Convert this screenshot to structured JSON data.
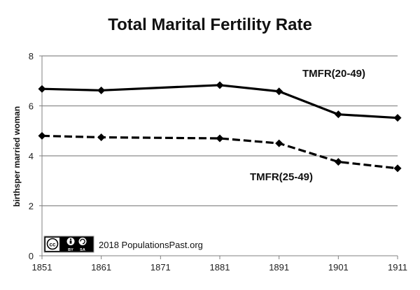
{
  "chart_data": {
    "type": "line",
    "title": "Total Marital Fertility Rate",
    "xlabel": "",
    "ylabel": "birthsper married woman",
    "xlim": [
      1851,
      1911
    ],
    "ylim": [
      0,
      8
    ],
    "x_ticks": [
      "1851",
      "1861",
      "1871",
      "1881",
      "1891",
      "1901",
      "1911"
    ],
    "y_ticks": [
      "0",
      "2",
      "4",
      "6",
      "8"
    ],
    "grid": "horizontal",
    "series": [
      {
        "name": "TMFR(20-49)",
        "style": "solid",
        "x": [
          1851,
          1861,
          1881,
          1891,
          1901,
          1911
        ],
        "values": [
          6.68,
          6.62,
          6.83,
          6.58,
          5.66,
          5.52
        ]
      },
      {
        "name": "TMFR(25-49)",
        "style": "dashed",
        "x": [
          1851,
          1861,
          1881,
          1891,
          1901,
          1911
        ],
        "values": [
          4.8,
          4.74,
          4.7,
          4.5,
          3.76,
          3.5
        ]
      }
    ],
    "colors": {
      "line": "#000000",
      "grid": "#8c8c8c",
      "axis": "#808080"
    }
  },
  "badge": {
    "cc": "cc",
    "by": "BY",
    "sa": "SA"
  },
  "credit": "2018 PopulationsPast.org"
}
